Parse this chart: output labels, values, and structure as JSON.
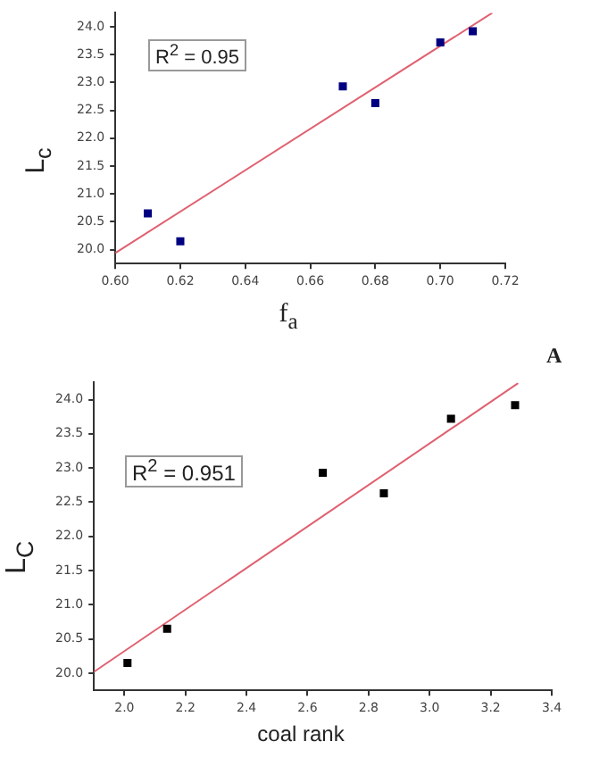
{
  "chart_data": [
    {
      "type": "scatter",
      "xlabel": "f$_{a}$",
      "ylabel": "L$_{c}$",
      "annotations": [
        "R$^{2}$ = 0.95",
        "A"
      ],
      "xlim": [
        0.6,
        0.72
      ],
      "xticks": [
        {
          "value": 0.6,
          "label": "0.60"
        },
        {
          "value": 0.62,
          "label": "0.62"
        },
        {
          "value": 0.64,
          "label": "0.64"
        },
        {
          "value": 0.66,
          "label": "0.66"
        },
        {
          "value": 0.68,
          "label": "0.68"
        },
        {
          "value": 0.7,
          "label": "0.70"
        },
        {
          "value": 0.72,
          "label": "0.72"
        }
      ],
      "ylim": [
        19.75,
        24.25
      ],
      "yticks": [
        {
          "value": 20,
          "label": "20.0"
        },
        {
          "value": 20.5,
          "label": "20.5"
        },
        {
          "value": 21,
          "label": "21.0"
        },
        {
          "value": 21.5,
          "label": "21.5"
        },
        {
          "value": 22,
          "label": "22.0"
        },
        {
          "value": 22.5,
          "label": "22.5"
        },
        {
          "value": 23,
          "label": "23.0"
        },
        {
          "value": 23.5,
          "label": "23.5"
        },
        {
          "value": 24,
          "label": "24.0"
        }
      ],
      "grid": false,
      "legend": false,
      "series": [
        {
          "marker": "square",
          "color": "#000080",
          "x": [
            0.61,
            0.62,
            0.67,
            0.68,
            0.7,
            0.71
          ],
          "values": [
            20.65,
            20.15,
            22.93,
            22.63,
            23.72,
            23.92
          ]
        },
        {
          "type": "line",
          "color": "#e06070",
          "x": [
            0.6,
            0.716
          ],
          "values": [
            19.94,
            24.25
          ]
        }
      ]
    },
    {
      "type": "scatter",
      "xlabel": "coal rank",
      "ylabel": "L$_{C}$",
      "annotations": [
        "R$^{2}$ = 0.951"
      ],
      "xlim": [
        1.9,
        3.4
      ],
      "xticks": [
        {
          "value": 2,
          "label": "2.0"
        },
        {
          "value": 2.2,
          "label": "2.2"
        },
        {
          "value": 2.4,
          "label": "2.4"
        },
        {
          "value": 2.6,
          "label": "2.6"
        },
        {
          "value": 2.8,
          "label": "2.8"
        },
        {
          "value": 3,
          "label": "3.0"
        },
        {
          "value": 3.2,
          "label": "3.2"
        },
        {
          "value": 3.4,
          "label": "3.4"
        }
      ],
      "ylim": [
        19.75,
        24.25
      ],
      "yticks": [
        {
          "value": 20,
          "label": "20.0"
        },
        {
          "value": 20.5,
          "label": "20.5"
        },
        {
          "value": 21,
          "label": "21.0"
        },
        {
          "value": 21.5,
          "label": "21.5"
        },
        {
          "value": 22,
          "label": "22.0"
        },
        {
          "value": 22.5,
          "label": "22.5"
        },
        {
          "value": 23,
          "label": "23.0"
        },
        {
          "value": 23.5,
          "label": "23.5"
        },
        {
          "value": 24,
          "label": "24.0"
        }
      ],
      "grid": false,
      "legend": false,
      "series": [
        {
          "marker": "square",
          "color": "#000000",
          "x": [
            2.01,
            2.14,
            2.65,
            2.85,
            3.07,
            3.28
          ],
          "values": [
            20.15,
            20.65,
            22.93,
            22.63,
            23.72,
            23.92
          ]
        },
        {
          "type": "line",
          "color": "#e06070",
          "x": [
            1.9,
            3.29
          ],
          "values": [
            20.02,
            24.24
          ]
        }
      ]
    }
  ]
}
